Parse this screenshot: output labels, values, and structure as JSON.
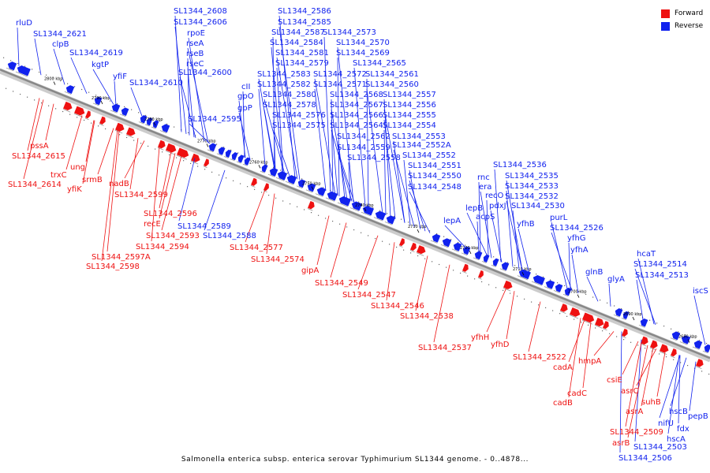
{
  "caption": "Salmonella enterica subsp. enterica serovar Typhimurium SL1344 genome. - 0..4878...",
  "legend": [
    {
      "label": "Forward",
      "color": "#ee1111"
    },
    {
      "label": "Reverse",
      "color": "#1122ee"
    }
  ],
  "colors": {
    "forward": "#ee1111",
    "reverse": "#1122ee",
    "backbone": "#888888"
  },
  "ticks": [
    "2800 kbp",
    "2790 kbp",
    "2780 kbp",
    "2770 kbp",
    "2760 kbp",
    "2750 kbp",
    "2740 kbp",
    "2730 kbp",
    "2720 kbp",
    "2710 kbp",
    "2700 kbp",
    "2690 kbp",
    "2680 kbp"
  ],
  "reverse_labels": [
    "rluD",
    "SL1344_2621",
    "clpB",
    "SL1344_2619",
    "kgtP",
    "yfiF",
    "SL1344_2608",
    "SL1344_2606",
    "rpoE",
    "rseA",
    "rseB",
    "rseC",
    "SL1344_2610",
    "SL1344_2600",
    "SL1344_2595",
    "cII",
    "gpO",
    "gpP",
    "SL1344_2586",
    "SL1344_2585",
    "SL1344_2587",
    "SL1344_2573",
    "SL1344_2584",
    "SL1344_2570",
    "SL1344_2581",
    "SL1344_2569",
    "SL1344_2579",
    "SL1344_2565",
    "SL1344_2583",
    "SL1344_2572",
    "SL1344_2561",
    "SL1344_2582",
    "SL1344_2571",
    "SL1344_2560",
    "SL1344_2580",
    "SL1344_2568",
    "SL1344_2557",
    "SL1344_2578",
    "SL1344_2567",
    "SL1344_2556",
    "SL1344_2576",
    "SL1344_2566",
    "SL1344_2555",
    "SL1344_2575",
    "SL1344_2564",
    "SL1344_2554",
    "SL1344_2562",
    "SL1344_2553",
    "SL1344_2559",
    "SL1344_2552A",
    "SL1344_2558",
    "SL1344_2552",
    "SL1344_2551",
    "SL1344_2550",
    "SL1344_2548",
    "rnc",
    "SL1344_2536",
    "era",
    "SL1344_2535",
    "lepB",
    "recO",
    "SL1344_2533",
    "pdxJ",
    "SL1344_2532",
    "lepA",
    "acpS",
    "SL1344_2530",
    "yfhB",
    "purL",
    "SL1344_2526",
    "yfhG",
    "yfhA",
    "glnB",
    "hcaT",
    "SL1344_2514",
    "glyA",
    "SL1344_2513",
    "iscS",
    "SL1344_2589",
    "SL1344_2588",
    "SL1344_2506",
    "SL1344_2503",
    "hscA",
    "hscB",
    "nifU",
    "fdx",
    "pepB"
  ],
  "forward_labels": [
    "pssA",
    "SL1344_2615",
    "trxC",
    "SL1344_2614",
    "ung",
    "yfiK",
    "srmB",
    "nadB",
    "SL1344_2599",
    "SL1344_2596",
    "recE",
    "SL1344_2593",
    "SL1344_2594",
    "SL1344_2597A",
    "SL1344_2598",
    "SL1344_2577",
    "SL1344_2574",
    "gipA",
    "SL1344_2549",
    "SL1344_2547",
    "SL1344_2546",
    "SL1344_2538",
    "SL1344_2537",
    "yfhH",
    "yfhD",
    "SL1344_2522",
    "cadA",
    "hmpA",
    "cadC",
    "cadB",
    "csiE",
    "asrC",
    "suhB",
    "asrA",
    "SL1344_2509",
    "asrB"
  ]
}
